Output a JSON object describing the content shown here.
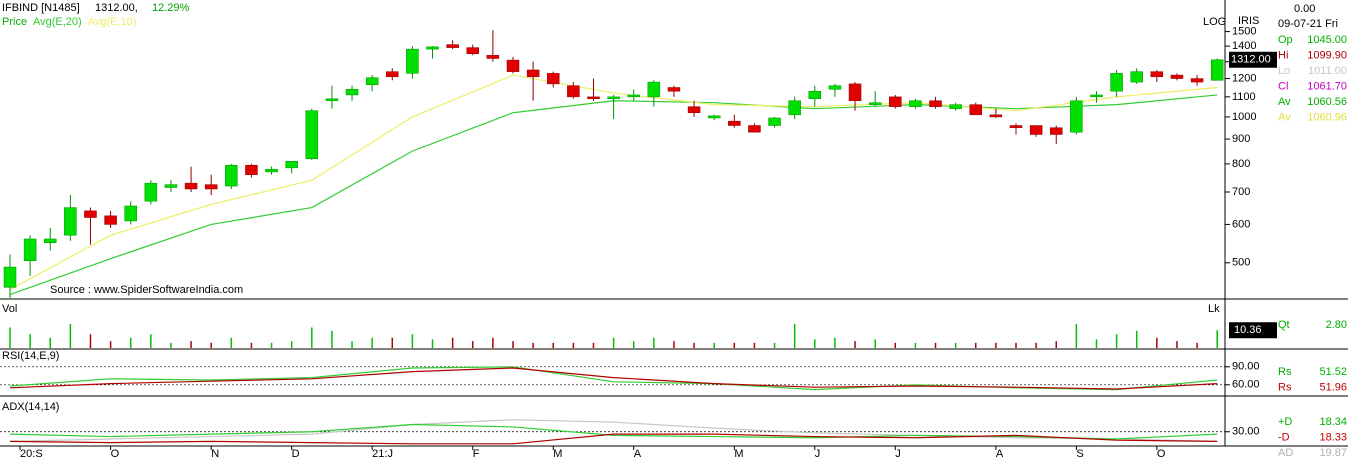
{
  "chart_data": [
    {
      "type": "candlestick",
      "title": "IFBIND [N1485]",
      "last": "1312.00,",
      "change": "12.29%",
      "legend_label": "Price",
      "source": "Source : www.SpiderSoftwareIndia.com",
      "scale_label": "LOG",
      "corner_label": "IRIS",
      "top_value": "0.00",
      "date": "09-07-21 Fri",
      "price_box": "1312.00",
      "log": true,
      "ylim": [
        423,
        1600
      ],
      "yticks": [
        500,
        600,
        700,
        800,
        900,
        1000,
        1100,
        1200,
        1300,
        1400,
        1500
      ],
      "xticks": [
        {
          "value": 0.5,
          "label": "20:S"
        },
        {
          "value": 5,
          "label": "O"
        },
        {
          "value": 10,
          "label": "N"
        },
        {
          "value": 14,
          "label": "D"
        },
        {
          "value": 18,
          "label": "21:J"
        },
        {
          "value": 23,
          "label": "F"
        },
        {
          "value": 27,
          "label": "M"
        },
        {
          "value": 31,
          "label": "A"
        },
        {
          "value": 36,
          "label": "M"
        },
        {
          "value": 40,
          "label": "J"
        },
        {
          "value": 44,
          "label": "J"
        },
        {
          "value": 49,
          "label": "A"
        },
        {
          "value": 53,
          "label": "S"
        },
        {
          "value": 57,
          "label": "O"
        }
      ],
      "up_color": "#00e000",
      "down_color": "#e00000",
      "candles": [
        [
          445,
          520,
          420,
          490
        ],
        [
          505,
          570,
          470,
          560
        ],
        [
          550,
          590,
          530,
          560
        ],
        [
          570,
          690,
          555,
          650
        ],
        [
          640,
          650,
          545,
          620
        ],
        [
          625,
          640,
          590,
          600
        ],
        [
          610,
          670,
          600,
          655
        ],
        [
          670,
          740,
          660,
          730
        ],
        [
          715,
          740,
          700,
          725
        ],
        [
          730,
          790,
          700,
          710
        ],
        [
          725,
          760,
          690,
          710
        ],
        [
          720,
          800,
          710,
          795
        ],
        [
          795,
          800,
          750,
          760
        ],
        [
          770,
          790,
          760,
          780
        ],
        [
          785,
          810,
          765,
          810
        ],
        [
          820,
          1040,
          815,
          1030
        ],
        [
          1080,
          1160,
          1040,
          1090
        ],
        [
          1110,
          1160,
          1080,
          1140
        ],
        [
          1165,
          1220,
          1130,
          1205
        ],
        [
          1240,
          1260,
          1190,
          1210
        ],
        [
          1230,
          1400,
          1200,
          1380
        ],
        [
          1380,
          1400,
          1320,
          1395
        ],
        [
          1410,
          1440,
          1380,
          1390
        ],
        [
          1390,
          1410,
          1340,
          1350
        ],
        [
          1340,
          1510,
          1300,
          1320
        ],
        [
          1310,
          1330,
          1230,
          1240
        ],
        [
          1250,
          1300,
          1080,
          1210
        ],
        [
          1230,
          1240,
          1150,
          1170
        ],
        [
          1160,
          1180,
          1090,
          1100
        ],
        [
          1100,
          1200,
          1080,
          1090
        ],
        [
          1090,
          1110,
          990,
          1100
        ],
        [
          1100,
          1140,
          1080,
          1110
        ],
        [
          1100,
          1190,
          1050,
          1180
        ],
        [
          1150,
          1160,
          1100,
          1130
        ],
        [
          1050,
          1080,
          1000,
          1020
        ],
        [
          995,
          1010,
          985,
          1005
        ],
        [
          980,
          1010,
          950,
          960
        ],
        [
          960,
          970,
          930,
          930
        ],
        [
          960,
          1000,
          950,
          995
        ],
        [
          1010,
          1100,
          990,
          1080
        ],
        [
          1090,
          1160,
          1050,
          1130
        ],
        [
          1140,
          1170,
          1100,
          1160
        ],
        [
          1170,
          1180,
          1030,
          1080
        ],
        [
          1060,
          1130,
          1050,
          1070
        ],
        [
          1100,
          1110,
          1040,
          1050
        ],
        [
          1050,
          1090,
          1040,
          1080
        ],
        [
          1080,
          1100,
          1040,
          1050
        ],
        [
          1040,
          1070,
          1030,
          1060
        ],
        [
          1060,
          1070,
          1010,
          1010
        ],
        [
          1010,
          1040,
          995,
          1000
        ],
        [
          960,
          970,
          920,
          950
        ],
        [
          960,
          960,
          910,
          920
        ],
        [
          950,
          960,
          880,
          920
        ],
        [
          930,
          1100,
          920,
          1080
        ],
        [
          1100,
          1130,
          1070,
          1110
        ],
        [
          1130,
          1250,
          1100,
          1230
        ],
        [
          1180,
          1260,
          1170,
          1240
        ],
        [
          1240,
          1250,
          1180,
          1210
        ],
        [
          1220,
          1230,
          1190,
          1200
        ],
        [
          1200,
          1220,
          1160,
          1180
        ],
        [
          1190,
          1320,
          1190,
          1312
        ]
      ],
      "ma": [
        {
          "name": "Avg(E,20)",
          "color": "#33cc33",
          "x": [
            0,
            5,
            10,
            15,
            20,
            25,
            30,
            35,
            40,
            45,
            50,
            55,
            60
          ],
          "values": [
            430,
            510,
            600,
            650,
            850,
            1020,
            1080,
            1070,
            1040,
            1060,
            1040,
            1060,
            1110
          ]
        },
        {
          "name": "Avg(E,10)",
          "color": "#eeee66",
          "x": [
            0,
            5,
            10,
            15,
            20,
            25,
            30,
            35,
            40,
            45,
            50,
            55,
            60
          ],
          "values": [
            440,
            570,
            660,
            740,
            1000,
            1220,
            1120,
            1060,
            1050,
            1070,
            1030,
            1100,
            1150
          ]
        }
      ],
      "readout": [
        {
          "label": "Op",
          "value": "1045.00",
          "color": "#00b000"
        },
        {
          "label": "Hi",
          "value": "1099.90",
          "color": "#b00000"
        },
        {
          "label": "Lo",
          "value": "1011.00",
          "color": "#c8c8c8"
        },
        {
          "label": "Cl",
          "value": "1061.70",
          "color": "#c000c0"
        },
        {
          "label": "Av",
          "value": "1060.56",
          "color": "#00b000"
        },
        {
          "label": "Av",
          "value": "1060.96",
          "color": "#e0e040"
        }
      ]
    },
    {
      "type": "bar",
      "title": "Vol",
      "unit": "Lk",
      "ylim": [
        0,
        28
      ],
      "value_box": "10.36",
      "values": [
        12,
        8,
        6,
        14,
        8,
        4,
        6,
        8,
        3,
        4,
        3,
        6,
        3,
        3,
        4,
        12,
        10,
        4,
        6,
        6,
        8,
        5,
        6,
        4,
        6,
        4,
        3,
        3,
        3,
        3,
        6,
        4,
        6,
        4,
        3,
        3,
        3,
        3,
        3,
        14,
        5,
        6,
        4,
        5,
        3,
        3,
        3,
        3,
        3,
        3,
        3,
        3,
        4,
        14,
        5,
        8,
        10,
        6,
        4,
        3,
        10.36
      ],
      "readout": [
        {
          "label": "Qt",
          "value": "2.80",
          "color": "#00b000"
        }
      ]
    },
    {
      "type": "line",
      "title": "RSI(14,E,9)",
      "ylim": [
        43,
        118
      ],
      "grid": "dotted",
      "yticks": [
        {
          "value": 90,
          "label": "90.00"
        },
        {
          "value": 60,
          "label": "60.00"
        }
      ],
      "x": [
        0,
        5,
        10,
        15,
        20,
        25,
        30,
        35,
        40,
        45,
        50,
        55,
        60
      ],
      "series": [
        {
          "color": "#33cc33",
          "values": [
            58,
            70,
            68,
            72,
            88,
            90,
            65,
            62,
            52,
            60,
            55,
            52,
            68
          ]
        },
        {
          "color": "#b00000",
          "values": [
            55,
            62,
            66,
            70,
            82,
            88,
            72,
            62,
            56,
            58,
            56,
            53,
            62
          ]
        }
      ],
      "readout": [
        {
          "label": "Rs",
          "value": "51.52",
          "color": "#00b000"
        },
        {
          "label": "Rs",
          "value": "51.96",
          "color": "#c00000"
        }
      ]
    },
    {
      "type": "line",
      "title": "ADX(14,14)",
      "ylim": [
        19,
        58
      ],
      "grid": "dotted",
      "yticks": [
        {
          "value": 30,
          "label": "30.00"
        }
      ],
      "x": [
        0,
        5,
        10,
        15,
        20,
        25,
        30,
        35,
        40,
        45,
        50,
        55,
        60
      ],
      "series": [
        {
          "color": "#c8c8c8",
          "values": [
            22,
            24,
            26,
            28,
            36,
            40,
            38,
            33,
            29,
            27,
            25,
            24,
            22
          ]
        },
        {
          "color": "#33cc33",
          "values": [
            28,
            26,
            28,
            30,
            36,
            34,
            27,
            26,
            25,
            27,
            26,
            24,
            28
          ]
        },
        {
          "color": "#b00000",
          "values": [
            22,
            21,
            22,
            21,
            20,
            20,
            28,
            28,
            26,
            25,
            27,
            23,
            22
          ]
        }
      ],
      "readout": [
        {
          "label": "+D",
          "value": "18.34",
          "color": "#00b000"
        },
        {
          "label": "-D",
          "value": "18.33",
          "color": "#c00000"
        },
        {
          "label": "AD",
          "value": "19.87",
          "color": "#b0b0b0"
        }
      ]
    }
  ]
}
